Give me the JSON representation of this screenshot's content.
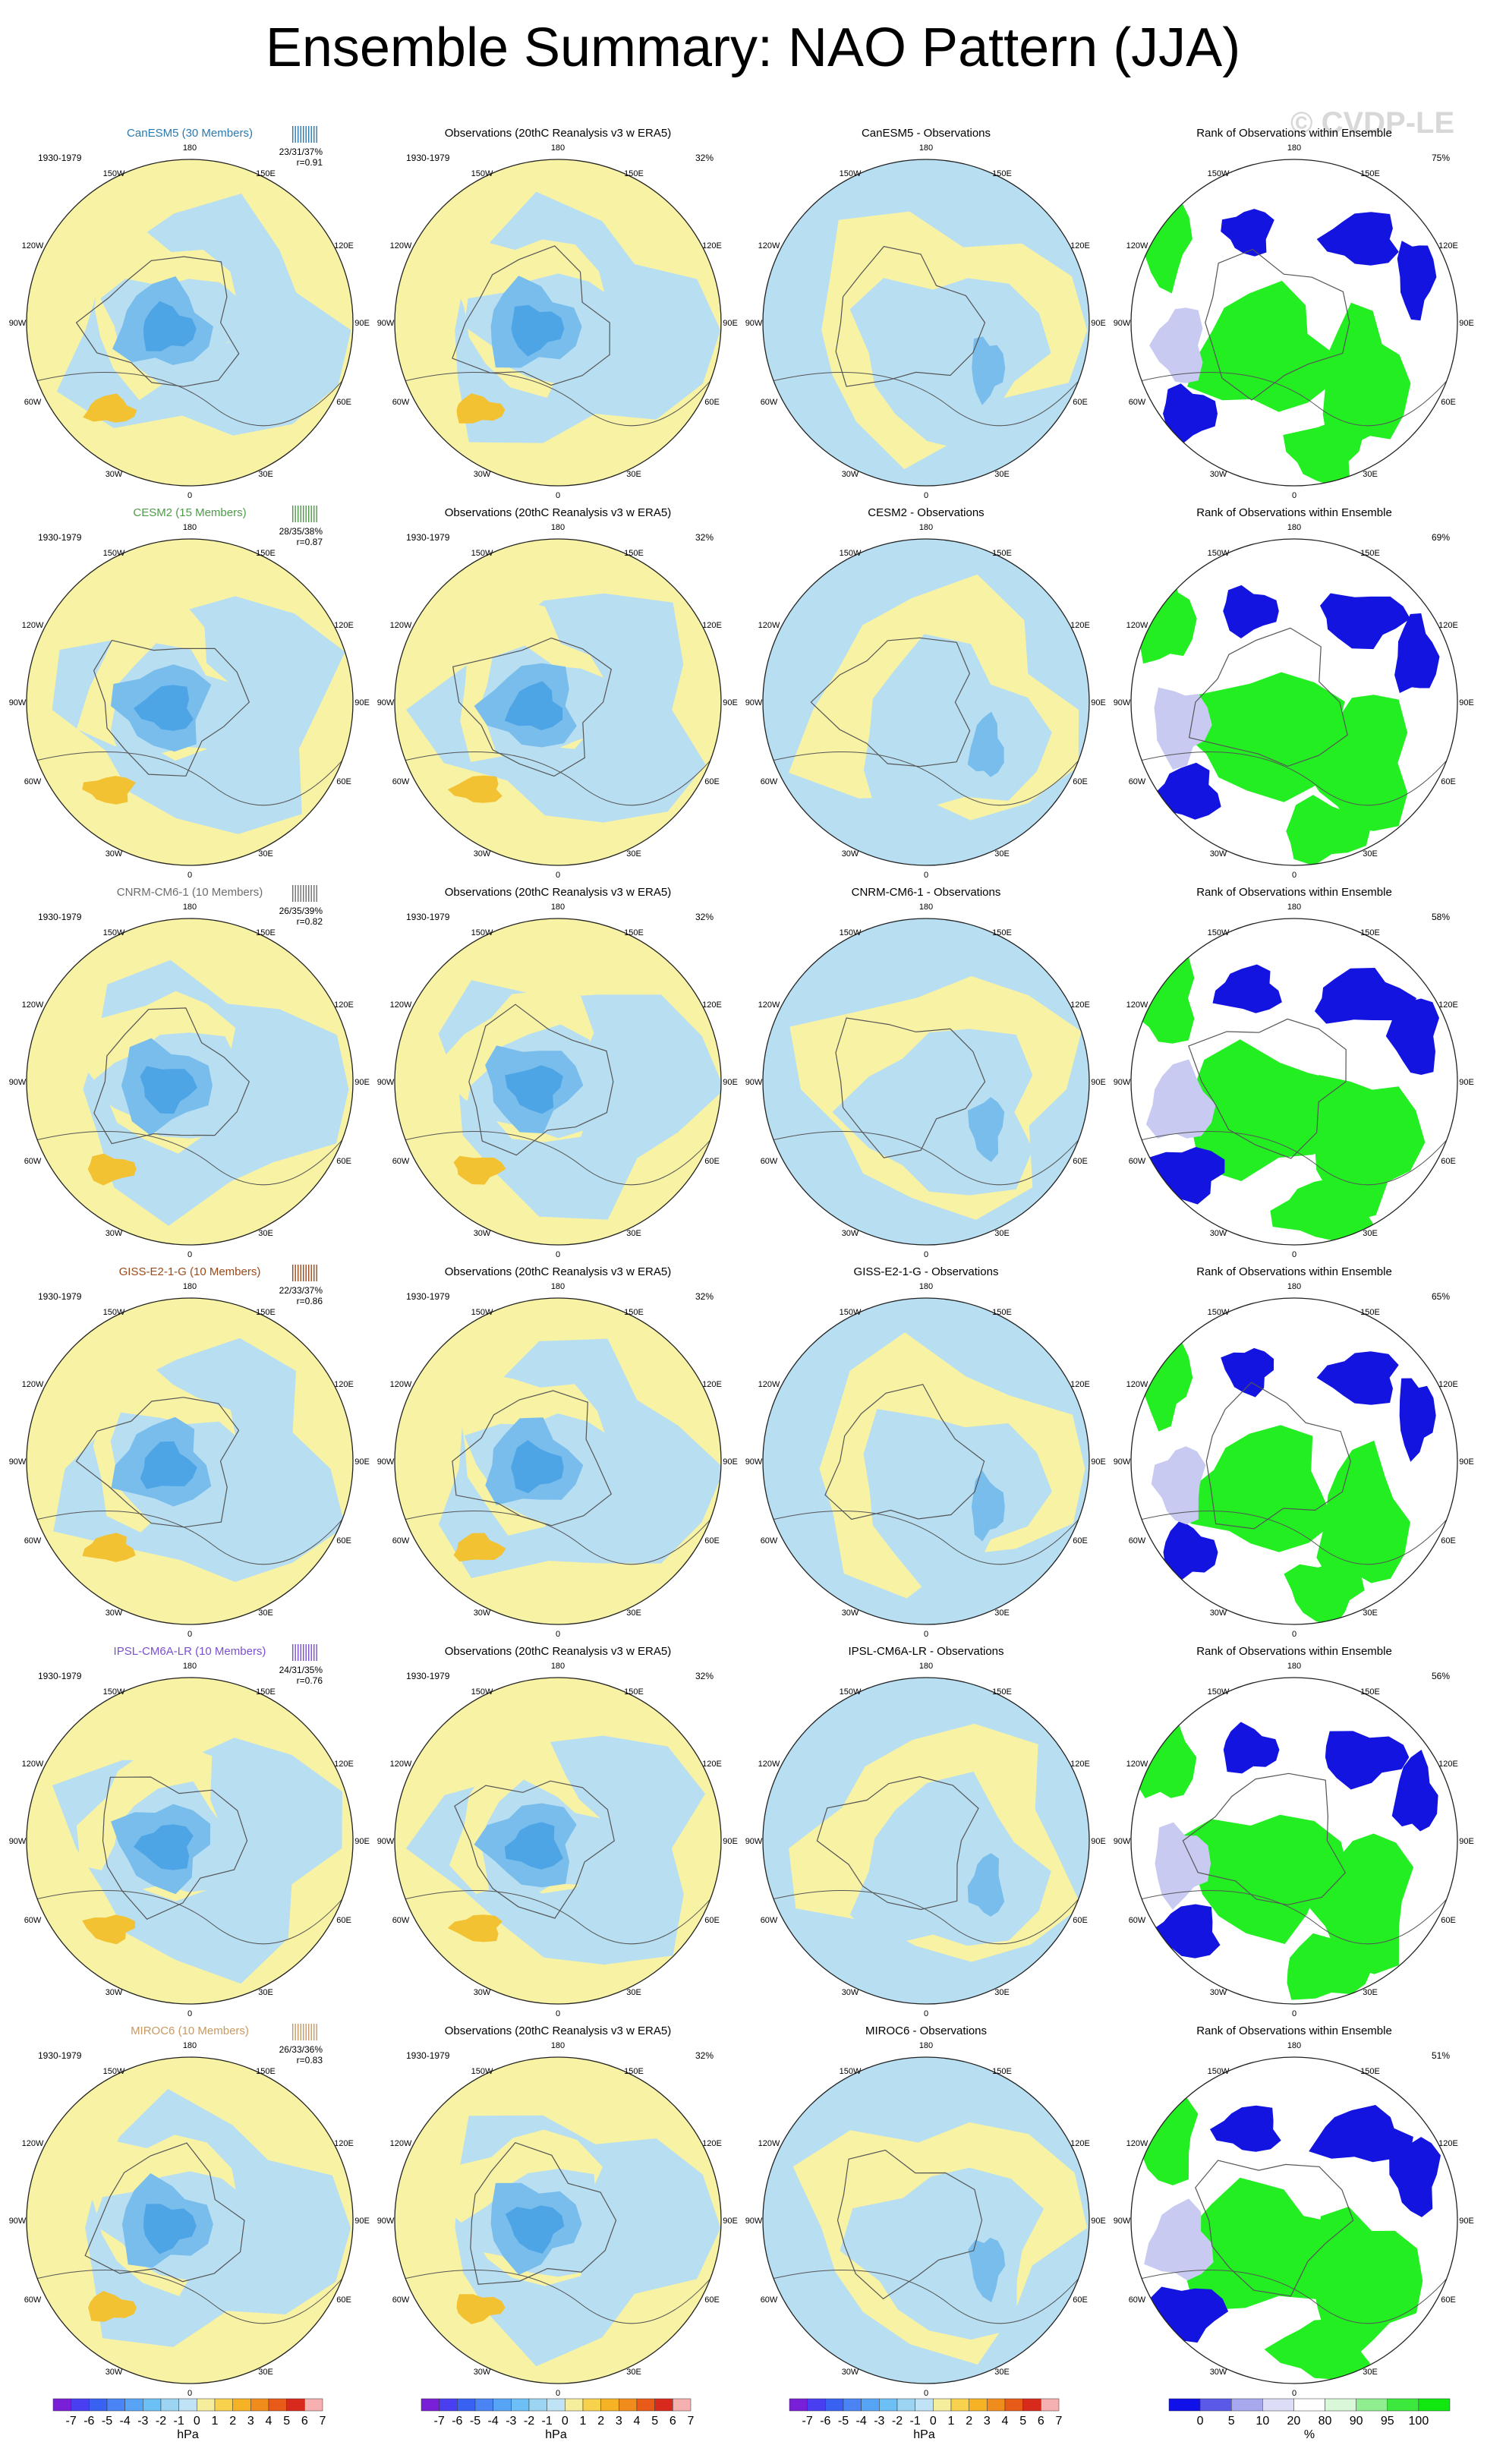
{
  "title": "Ensemble Summary: NAO Pattern (JJA)",
  "watermark": "© CVDP-LE",
  "period": "1930-1979",
  "lon_labels": [
    "180",
    "150W",
    "150E",
    "120W",
    "120E",
    "90W",
    "90E",
    "60W",
    "60E",
    "30W",
    "30E",
    "0"
  ],
  "obs_title": "Observations (20thC Reanalysis v3 w ERA5)",
  "obs_pct": "32%",
  "rank_title": "Rank of Observations within Ensemble",
  "models": [
    {
      "name": "CanESM5 (30 Members)",
      "diff_title": "CanESM5 - Observations",
      "stats": "23/31/37%",
      "r": "r=0.91",
      "rank_pct": "75%",
      "color": "#2a7ab0"
    },
    {
      "name": "CESM2 (15 Members)",
      "diff_title": "CESM2 - Observations",
      "stats": "28/35/38%",
      "r": "r=0.87",
      "rank_pct": "69%",
      "color": "#4f9a4a"
    },
    {
      "name": "CNRM-CM6-1 (10 Members)",
      "diff_title": "CNRM-CM6-1 - Observations",
      "stats": "26/35/39%",
      "r": "r=0.82",
      "rank_pct": "58%",
      "color": "#6d6d6d"
    },
    {
      "name": "GISS-E2-1-G (10 Members)",
      "diff_title": "GISS-E2-1-G - Observations",
      "stats": "22/33/37%",
      "r": "r=0.86",
      "rank_pct": "65%",
      "color": "#9b4a1a"
    },
    {
      "name": "IPSL-CM6A-LR (10 Members)",
      "diff_title": "IPSL-CM6A-LR - Observations",
      "stats": "24/31/35%",
      "r": "r=0.76",
      "rank_pct": "56%",
      "color": "#7a4fd4"
    },
    {
      "name": "MIROC6 (10 Members)",
      "diff_title": "MIROC6 - Observations",
      "stats": "26/33/36%",
      "r": "r=0.83",
      "rank_pct": "51%",
      "color": "#c79a63"
    }
  ],
  "hpa_colorbar": {
    "labels": [
      "-7",
      "-6",
      "-5",
      "-4",
      "-3",
      "-2",
      "-1",
      "0",
      "1",
      "2",
      "3",
      "4",
      "5",
      "6",
      "7"
    ],
    "unit": "hPa",
    "colors": [
      "#7a1fd8",
      "#4a3ff0",
      "#3a62f2",
      "#4a84f4",
      "#57a4f6",
      "#6cc0f6",
      "#9cd4f2",
      "#bfe2f4",
      "#f6ee9c",
      "#f8d24c",
      "#f4b224",
      "#f08c1c",
      "#e85a18",
      "#d82a1c",
      "#f6b0b0"
    ]
  },
  "rank_colorbar": {
    "labels": [
      "0",
      "5",
      "10",
      "20",
      "80",
      "90",
      "95",
      "100"
    ],
    "unit": "%",
    "colors": [
      "#1010e8",
      "#5a5ae8",
      "#a8a8ee",
      "#dcdcf6",
      "#ffffff",
      "#d8f8d8",
      "#90ee90",
      "#3ce83c",
      "#10e810"
    ]
  },
  "map_colors": {
    "positive": "#f8f2a4",
    "negative": "#b8def2",
    "neg_mid": "#79bdec",
    "neg_strong": "#4ea5e6",
    "pos_mid": "#f2c232",
    "coast": "#555555",
    "rank_high": "#22ee22",
    "rank_low": "#1414e0",
    "rank_lowmid": "#c8caf2"
  }
}
